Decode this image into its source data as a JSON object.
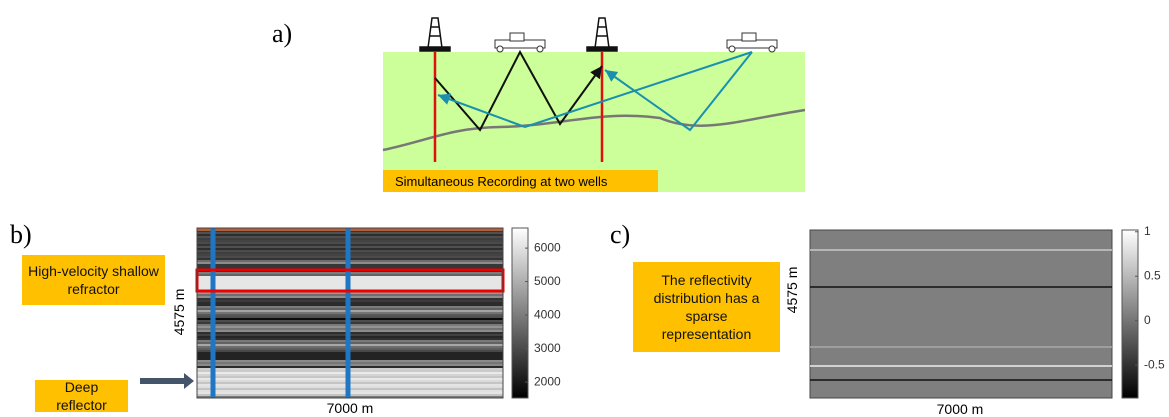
{
  "panels": [
    {
      "label": "a)",
      "banner": "Simultaneous Recording at two wells"
    },
    {
      "label": "b)",
      "x_label": "7000 m",
      "y_label": "4575 m",
      "callouts": [
        "High-velocity shallow refractor",
        "Deep reflector"
      ],
      "colorbar": {
        "lim": [
          1525,
          6600
        ],
        "ticks": [
          6000,
          5000,
          4000,
          3000,
          2000
        ]
      }
    },
    {
      "label": "c)",
      "x_label": "7000 m",
      "y_label": "4575 m",
      "callouts": [
        "The reflectivity distribution has a sparse representation"
      ],
      "colorbar": {
        "lim": [
          -0.87,
          1.02
        ],
        "ticks": [
          1,
          0.5,
          0,
          -0.5
        ]
      }
    }
  ]
}
